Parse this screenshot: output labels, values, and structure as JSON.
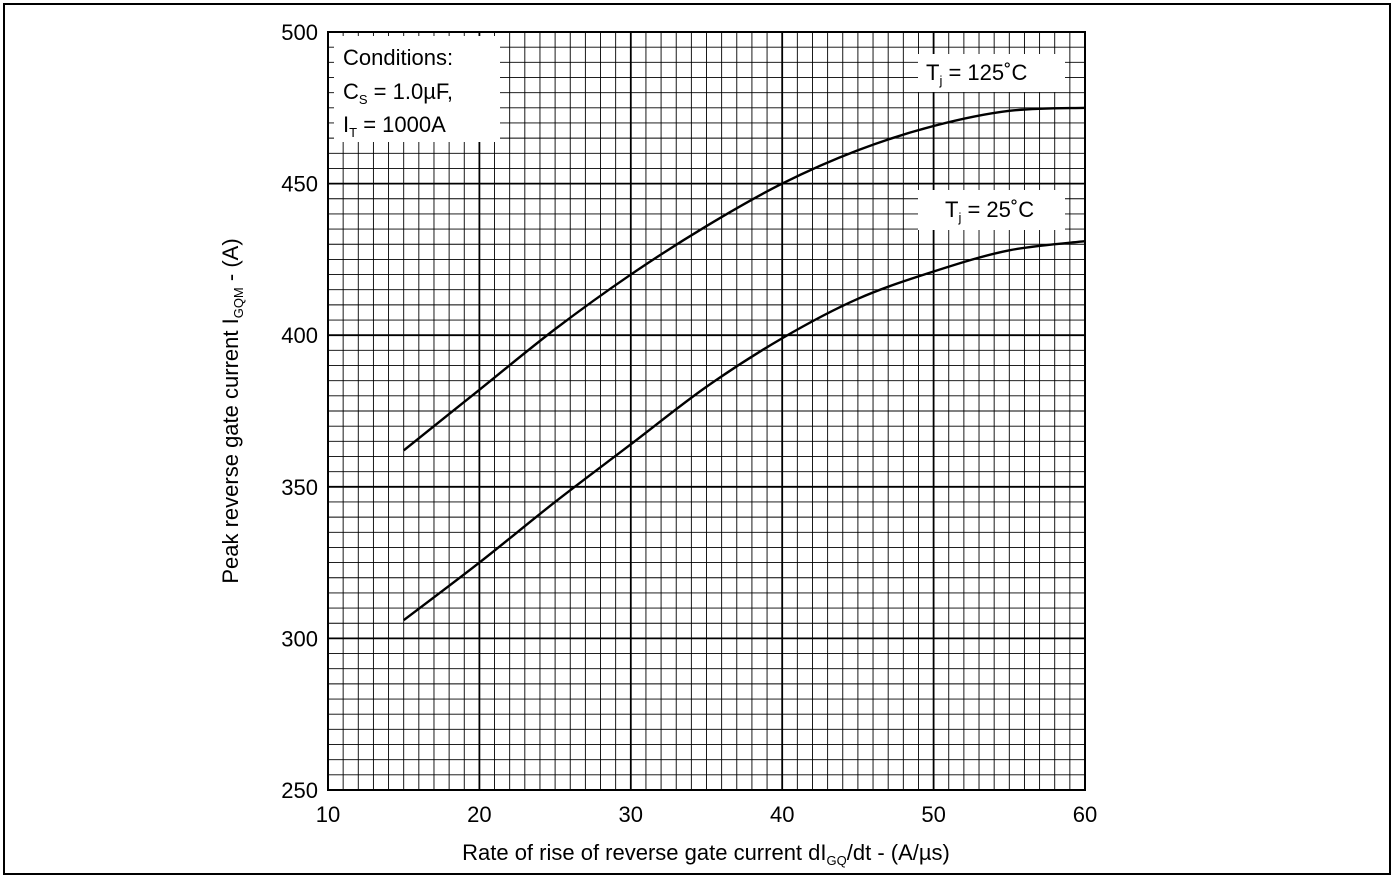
{
  "chart_data": {
    "type": "line",
    "title": "",
    "xlabel": {
      "main": "Rate of rise of reverse gate current dI",
      "sub": "GQ",
      "tail": "/dt - (A/µs)"
    },
    "ylabel": {
      "main": "Peak reverse gate current I",
      "sub": "GQM",
      "tail": " - (A)"
    },
    "xlim": [
      10,
      60
    ],
    "ylim": [
      250,
      500
    ],
    "x_ticks": [
      "10",
      "20",
      "30",
      "40",
      "50",
      "60"
    ],
    "y_ticks": [
      "250",
      "300",
      "350",
      "400",
      "450",
      "500"
    ],
    "grid": {
      "minor_x_step": 1,
      "minor_y_step": 5,
      "major_x_step": 10,
      "major_y_step": 50
    },
    "conditions": {
      "line1": "Conditions:",
      "line2_main": "C",
      "line2_sub": "S",
      "line2_tail": " = 1.0µF,",
      "line3_main": "I",
      "line3_sub": "T",
      "line3_tail": " = 1000A"
    },
    "series": [
      {
        "name": "Tj = 125°C",
        "label_main": "T",
        "label_sub": "j",
        "label_tail": " = 125˚C",
        "x": [
          15,
          20,
          25,
          30,
          35,
          40,
          45,
          50,
          55,
          60
        ],
        "y": [
          362,
          382,
          402,
          420,
          436,
          450,
          461,
          469,
          474,
          475
        ]
      },
      {
        "name": "Tj = 25°C",
        "label_main": "T",
        "label_sub": "j",
        "label_tail": " = 25˚C",
        "x": [
          15,
          20,
          25,
          30,
          35,
          40,
          45,
          50,
          55,
          60
        ],
        "y": [
          306,
          325,
          345,
          364,
          383,
          399,
          412,
          421,
          428,
          431
        ]
      }
    ]
  }
}
